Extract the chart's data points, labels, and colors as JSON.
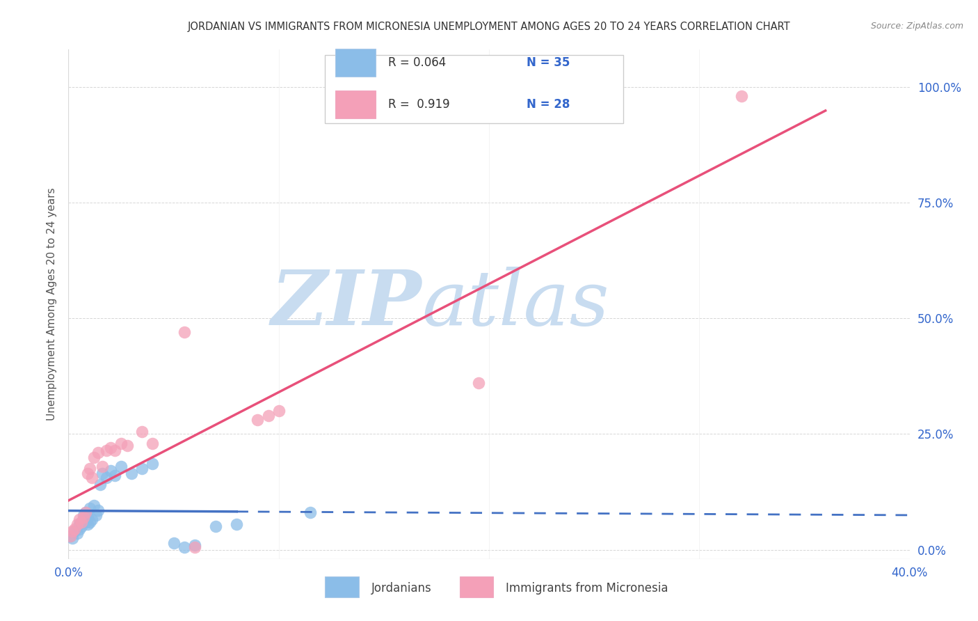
{
  "title": "JORDANIAN VS IMMIGRANTS FROM MICRONESIA UNEMPLOYMENT AMONG AGES 20 TO 24 YEARS CORRELATION CHART",
  "source": "Source: ZipAtlas.com",
  "ylabel": "Unemployment Among Ages 20 to 24 years",
  "xlim": [
    0.0,
    0.4
  ],
  "ylim": [
    -0.02,
    1.08
  ],
  "xticks": [
    0.0,
    0.1,
    0.2,
    0.3,
    0.4
  ],
  "xticklabels": [
    "0.0%",
    "",
    "",
    "",
    "40.0%"
  ],
  "yticks_right": [
    0.0,
    0.25,
    0.5,
    0.75,
    1.0
  ],
  "yticklabels_right": [
    "0.0%",
    "25.0%",
    "50.0%",
    "75.0%",
    "100.0%"
  ],
  "legend_r1": "R = 0.064",
  "legend_n1": "N = 35",
  "legend_r2": "R =  0.919",
  "legend_n2": "N = 28",
  "jordanians_color": "#8BBDE8",
  "micronesia_color": "#F4A0B8",
  "trend_jordan_color": "#4472C4",
  "trend_micro_color": "#E8507A",
  "watermark_zip": "ZIP",
  "watermark_atlas": "atlas",
  "watermark_color": "#C8DCF0",
  "background_color": "#FFFFFF",
  "grid_color": "#CCCCCC",
  "title_color": "#333333",
  "axis_label_color": "#555555",
  "tick_color": "#3366CC",
  "jordanians_x": [
    0.001,
    0.002,
    0.003,
    0.004,
    0.005,
    0.005,
    0.006,
    0.006,
    0.007,
    0.007,
    0.008,
    0.008,
    0.009,
    0.009,
    0.01,
    0.01,
    0.011,
    0.012,
    0.013,
    0.014,
    0.015,
    0.016,
    0.018,
    0.02,
    0.022,
    0.025,
    0.03,
    0.035,
    0.04,
    0.05,
    0.055,
    0.06,
    0.07,
    0.08,
    0.115
  ],
  "jordanians_y": [
    0.03,
    0.025,
    0.04,
    0.035,
    0.045,
    0.055,
    0.06,
    0.05,
    0.065,
    0.075,
    0.06,
    0.08,
    0.055,
    0.07,
    0.06,
    0.09,
    0.065,
    0.095,
    0.075,
    0.085,
    0.14,
    0.165,
    0.155,
    0.17,
    0.16,
    0.18,
    0.165,
    0.175,
    0.185,
    0.015,
    0.005,
    0.01,
    0.05,
    0.055,
    0.08
  ],
  "micronesia_x": [
    0.001,
    0.002,
    0.003,
    0.004,
    0.005,
    0.006,
    0.007,
    0.008,
    0.009,
    0.01,
    0.011,
    0.012,
    0.014,
    0.016,
    0.018,
    0.02,
    0.022,
    0.025,
    0.028,
    0.035,
    0.04,
    0.055,
    0.06,
    0.09,
    0.095,
    0.1,
    0.195,
    0.32
  ],
  "micronesia_y": [
    0.03,
    0.04,
    0.045,
    0.055,
    0.065,
    0.06,
    0.07,
    0.08,
    0.165,
    0.175,
    0.155,
    0.2,
    0.21,
    0.18,
    0.215,
    0.22,
    0.215,
    0.23,
    0.225,
    0.255,
    0.23,
    0.47,
    0.005,
    0.28,
    0.29,
    0.3,
    0.36,
    0.98
  ],
  "trend_jordan_x_solid_end": 0.08,
  "trend_jordan_x_dash_end": 0.4,
  "trend_micro_x_start": 0.0,
  "trend_micro_x_end": 0.36
}
